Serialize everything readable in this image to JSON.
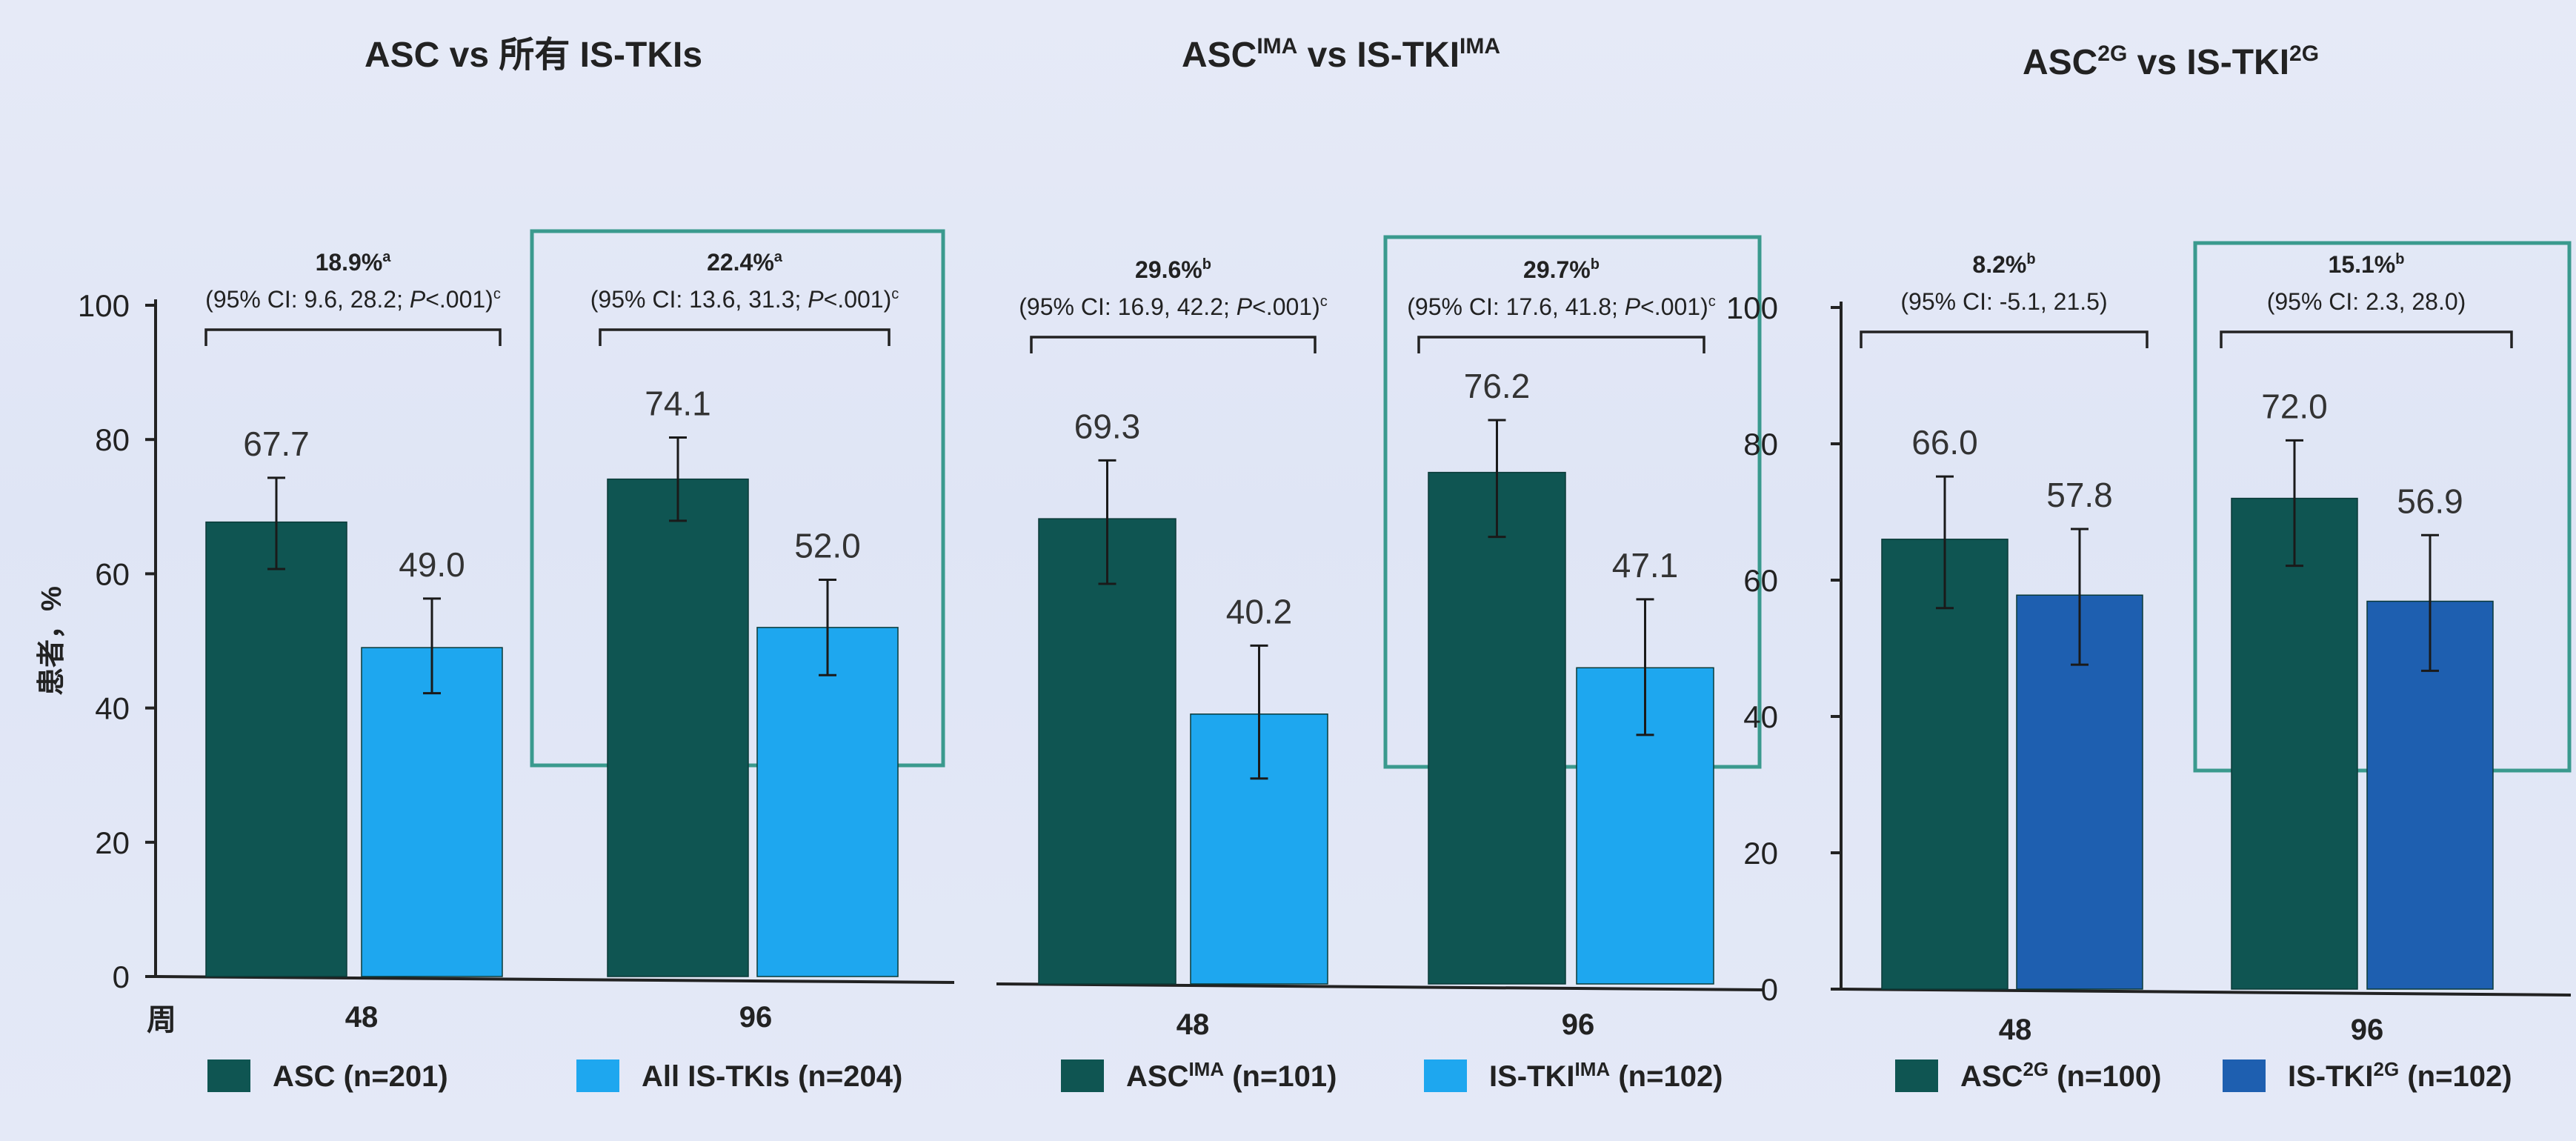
{
  "colors": {
    "asc": "#0f5552",
    "is_tki_light": "#1ea7ef",
    "is_tki_blue": "#1e5fb0",
    "highlight_box": "#3a9a8e",
    "axis": "#222222",
    "error_bar": "#1a1a1a"
  },
  "week_axis_label": "周",
  "chart_data": [
    {
      "type": "bar",
      "title": "ASC vs 所有 IS-TKIs",
      "ylabel": "患者，%",
      "ylim": [
        0,
        100
      ],
      "yticks": [
        "0",
        "20",
        "40",
        "60",
        "80",
        "100"
      ],
      "categories": [
        "48",
        "96"
      ],
      "highlighted_category": "96",
      "series": [
        {
          "name": "ASC (n=201)",
          "color_key": "asc",
          "values": [
            67.7,
            74.1
          ],
          "labels": [
            "67.7",
            "74.1"
          ],
          "ci": [
            [
              60.7,
              74.3
            ],
            [
              67.9,
              80.3
            ]
          ]
        },
        {
          "name": "All IS-TKIs (n=204)",
          "color_key": "is_tki_light",
          "values": [
            49.0,
            52.0
          ],
          "labels": [
            "49.0",
            "52.0"
          ],
          "ci": [
            [
              42.2,
              56.3
            ],
            [
              44.9,
              59.1
            ]
          ]
        }
      ],
      "annotations": [
        {
          "category": "48",
          "diff": "18.9%",
          "sup": "a",
          "ci_text": "(95% CI: 9.6, 28.2; ",
          "p_italic": "P",
          "p_rest": "<.001)",
          "p_sup": "c"
        },
        {
          "category": "96",
          "diff": "22.4%",
          "sup": "a",
          "ci_text": "(95% CI: 13.6, 31.3; ",
          "p_italic": "P",
          "p_rest": "<.001)",
          "p_sup": "c"
        }
      ]
    },
    {
      "type": "bar",
      "title": "ASC",
      "title_sup": "IMA",
      "title_mid": " vs IS-TKI",
      "title_sup2": "IMA",
      "ylim": [
        0,
        100
      ],
      "categories": [
        "48",
        "96"
      ],
      "highlighted_category": "96",
      "series": [
        {
          "name": "ASC",
          "name_sup": "IMA",
          "name_rest": " (n=101)",
          "color_key": "asc",
          "values": [
            69.3,
            76.2
          ],
          "labels": [
            "69.3",
            "76.2"
          ],
          "ci": [
            [
              59.6,
              78.0
            ],
            [
              66.6,
              84.0
            ]
          ]
        },
        {
          "name": "IS-TKI",
          "name_sup": "IMA",
          "name_rest": " (n=102)",
          "color_key": "is_tki_light",
          "values": [
            40.2,
            47.1
          ],
          "labels": [
            "40.2",
            "47.1"
          ],
          "ci": [
            [
              30.6,
              50.4
            ],
            [
              37.1,
              57.3
            ]
          ]
        }
      ],
      "annotations": [
        {
          "category": "48",
          "diff": "29.6%",
          "sup": "b",
          "ci_text": "(95% CI: 16.9, 42.2; ",
          "p_italic": "P",
          "p_rest": "<.001)",
          "p_sup": "c"
        },
        {
          "category": "96",
          "diff": "29.7%",
          "sup": "b",
          "ci_text": "(95% CI: 17.6, 41.8; ",
          "p_italic": "P",
          "p_rest": "<.001)",
          "p_sup": "c"
        }
      ]
    },
    {
      "type": "bar",
      "title": "ASC",
      "title_sup": "2G",
      "title_mid": " vs IS-TKI",
      "title_sup2": "2G",
      "ylim": [
        0,
        100
      ],
      "yticks": [
        "0",
        "20",
        "40",
        "60",
        "80",
        "100"
      ],
      "categories": [
        "48",
        "96"
      ],
      "highlighted_category": "96",
      "series": [
        {
          "name": "ASC",
          "name_sup": "2G",
          "name_rest": " (n=100)",
          "color_key": "asc",
          "values": [
            66.0,
            72.0
          ],
          "labels": [
            "66.0",
            "72.0"
          ],
          "ci": [
            [
              55.9,
              75.2
            ],
            [
              62.1,
              80.5
            ]
          ]
        },
        {
          "name": "IS-TKI",
          "name_sup": "2G",
          "name_rest": " (n=102)",
          "color_key": "is_tki_blue",
          "values": [
            57.8,
            56.9
          ],
          "labels": [
            "57.8",
            "56.9"
          ],
          "ci": [
            [
              47.6,
              67.5
            ],
            [
              46.7,
              66.6
            ]
          ]
        }
      ],
      "annotations": [
        {
          "category": "48",
          "diff": "8.2%",
          "sup": "b",
          "ci_text": "(95% CI: -5.1, 21.5)"
        },
        {
          "category": "96",
          "diff": "15.1%",
          "sup": "b",
          "ci_text": "(95% CI: 2.3, 28.0)"
        }
      ]
    }
  ]
}
